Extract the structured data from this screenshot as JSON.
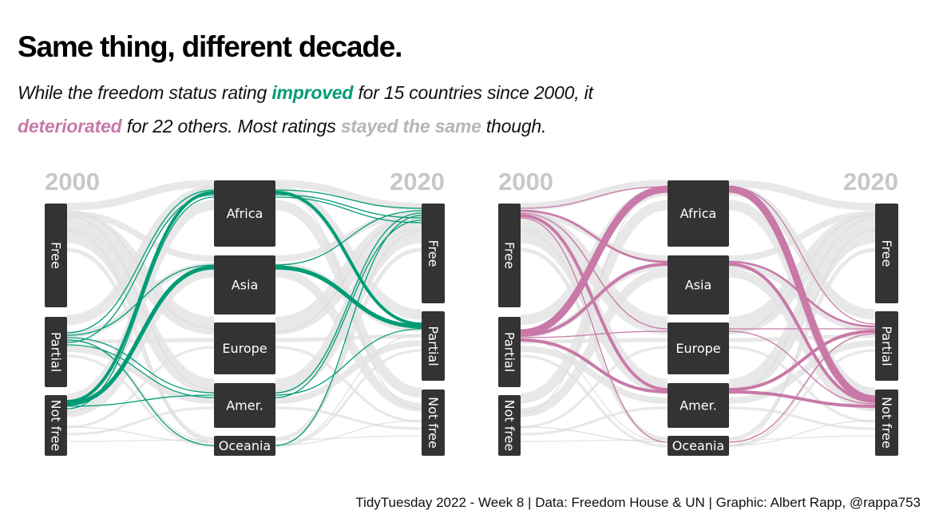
{
  "title": "Same thing, different decade.",
  "subtitle": {
    "line1_a": "While the freedom status rating ",
    "line1_improved": "improved",
    "line1_b": " for 15 countries since 2000, it",
    "line2_deteriorated": "deteriorated",
    "line2_a": " for 22 others. Most ratings ",
    "line2_same": "stayed the same",
    "line2_b": " though."
  },
  "caption": "TidyTuesday 2022 - Week 8 | Data: Freedom House & UN | Graphic: Albert Rapp, @rappa753",
  "colors": {
    "improved": "#009C76",
    "deteriorated": "#C879A8",
    "same": "#B5B5B5",
    "node": "#333333",
    "background_flow": "#E4E4E4"
  },
  "chart_data": [
    {
      "type": "alluvial",
      "panel": "improved",
      "highlight": "improved",
      "highlight_color": "#009C76",
      "axes": [
        "2000",
        "Region",
        "2020"
      ],
      "year_labels": [
        "2000",
        "2020"
      ],
      "status_nodes_2000": [
        "Free",
        "Partial",
        "Not free"
      ],
      "region_nodes": [
        "Africa",
        "Asia",
        "Europe",
        "Amer.",
        "Oceania"
      ],
      "status_nodes_2020": [
        "Free",
        "Partial",
        "Not free"
      ],
      "highlighted_flows": [
        {
          "from": "Partial",
          "region": "Africa",
          "to": "Free",
          "weight": 1
        },
        {
          "from": "Partial",
          "region": "Asia",
          "to": "Free",
          "weight": 1
        },
        {
          "from": "Partial",
          "region": "Amer.",
          "to": "Free",
          "weight": 1
        },
        {
          "from": "Partial",
          "region": "Oceania",
          "to": "Free",
          "weight": 1
        },
        {
          "from": "Not free",
          "region": "Africa",
          "to": "Partial",
          "weight": 3
        },
        {
          "from": "Not free",
          "region": "Asia",
          "to": "Partial",
          "weight": 4
        },
        {
          "from": "Not free",
          "region": "Amer.",
          "to": "Partial",
          "weight": 1
        },
        {
          "from": "Partial",
          "region": "Africa",
          "to": "Free",
          "weight": 1
        },
        {
          "from": "Partial",
          "region": "Amer.",
          "to": "Free",
          "weight": 1
        },
        {
          "from": "Not free",
          "region": "Africa",
          "to": "Free",
          "weight": 1
        }
      ],
      "total_changed": 15
    },
    {
      "type": "alluvial",
      "panel": "deteriorated",
      "highlight": "deteriorated",
      "highlight_color": "#C879A8",
      "axes": [
        "2000",
        "Region",
        "2020"
      ],
      "year_labels": [
        "2000",
        "2020"
      ],
      "status_nodes_2000": [
        "Free",
        "Partial",
        "Not free"
      ],
      "region_nodes": [
        "Africa",
        "Asia",
        "Europe",
        "Amer.",
        "Oceania"
      ],
      "status_nodes_2020": [
        "Free",
        "Partial",
        "Not free"
      ],
      "highlighted_flows": [
        {
          "from": "Free",
          "region": "Africa",
          "to": "Partial",
          "weight": 1
        },
        {
          "from": "Free",
          "region": "Asia",
          "to": "Partial",
          "weight": 2
        },
        {
          "from": "Free",
          "region": "Europe",
          "to": "Partial",
          "weight": 1
        },
        {
          "from": "Free",
          "region": "Amer.",
          "to": "Partial",
          "weight": 3
        },
        {
          "from": "Free",
          "region": "Oceania",
          "to": "Partial",
          "weight": 1
        },
        {
          "from": "Partial",
          "region": "Africa",
          "to": "Not free",
          "weight": 7
        },
        {
          "from": "Partial",
          "region": "Asia",
          "to": "Not free",
          "weight": 3
        },
        {
          "from": "Partial",
          "region": "Europe",
          "to": "Not free",
          "weight": 1
        },
        {
          "from": "Partial",
          "region": "Amer.",
          "to": "Not free",
          "weight": 3
        }
      ],
      "total_changed": 22
    }
  ]
}
